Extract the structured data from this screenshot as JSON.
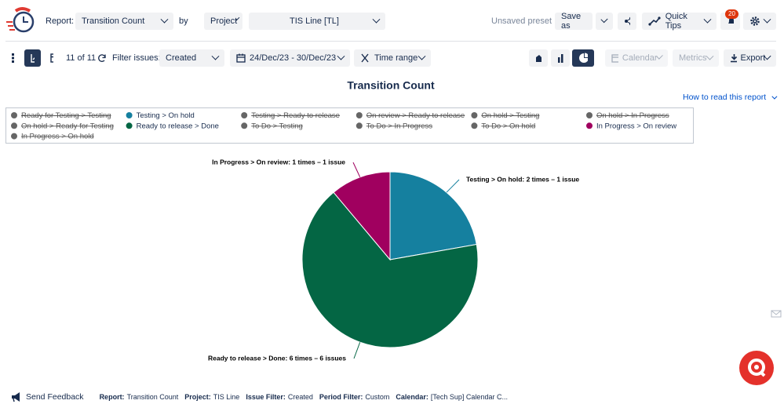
{
  "toolbar": {
    "report_label": "Report:",
    "report": "Transition Count",
    "by": "by",
    "group": "Project",
    "filter": "TIS Line [TL]",
    "preset": "Unsaved preset",
    "save_as": "Save as",
    "quick_tips": "Quick Tips",
    "notifications": "20"
  },
  "subbar": {
    "count": "11 of 11",
    "filter_label": "Filter issues:",
    "filter": "Created",
    "dates": "24/Dec/23 - 30/Dec/23",
    "time_range": "Time range",
    "calendar": "Calendar",
    "metrics": "Metrics",
    "export": "Export"
  },
  "help_link": "How to read this report",
  "chart_data": {
    "type": "pie",
    "title": "Transition Count",
    "categories": [
      "Testing > On hold",
      "Ready to release > Done",
      "In Progress > On review"
    ],
    "values": [
      2,
      6,
      1
    ],
    "value_labels": [
      "Testing > On hold: 2 times – 1 issue",
      "Ready to release > Done: 6 times – 6 issues",
      "In Progress > On review: 1 times – 1 issue"
    ],
    "colors": [
      "#15809f",
      "#046644",
      "#a0005f"
    ],
    "legend": [
      {
        "name": "Ready for Testing > Testing",
        "color": "#666666",
        "hidden": true
      },
      {
        "name": "Testing > On hold",
        "color": "#15809f",
        "hidden": false
      },
      {
        "name": "Testing > Ready to release",
        "color": "#666666",
        "hidden": true
      },
      {
        "name": "On review > Ready to release",
        "color": "#666666",
        "hidden": true
      },
      {
        "name": "On hold > Testing",
        "color": "#666666",
        "hidden": true
      },
      {
        "name": "On hold > In Progress",
        "color": "#666666",
        "hidden": true
      },
      {
        "name": "On hold > Ready for Testing",
        "color": "#666666",
        "hidden": true
      },
      {
        "name": "Ready to release > Done",
        "color": "#046644",
        "hidden": false
      },
      {
        "name": "To Do > Testing",
        "color": "#666666",
        "hidden": true
      },
      {
        "name": "To Do > In Progress",
        "color": "#666666",
        "hidden": true
      },
      {
        "name": "To Do > On hold",
        "color": "#666666",
        "hidden": true
      },
      {
        "name": "In Progress > On review",
        "color": "#a0005f",
        "hidden": false
      },
      {
        "name": "In Progress > On hold",
        "color": "#666666",
        "hidden": true
      }
    ]
  },
  "footer": {
    "feedback": "Send Feedback",
    "items": [
      {
        "label": "Report:",
        "value": "Transition Count"
      },
      {
        "label": "Project:",
        "value": "TIS Line"
      },
      {
        "label": "Issue Filter:",
        "value": "Created"
      },
      {
        "label": "Period Filter:",
        "value": "Custom"
      },
      {
        "label": "Calendar:",
        "value": "[Tech Sup] Calendar C..."
      }
    ]
  }
}
